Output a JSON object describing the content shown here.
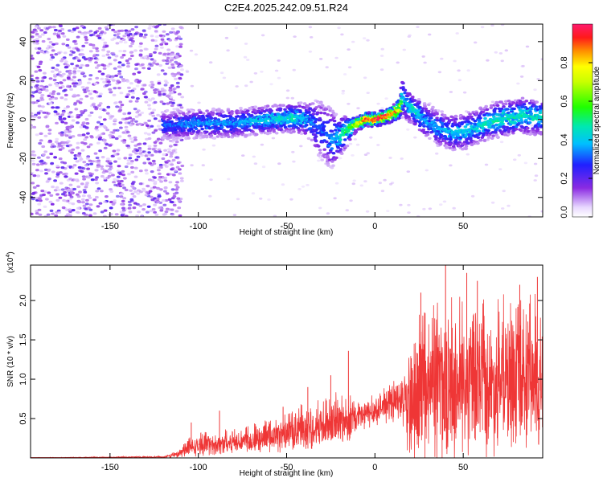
{
  "title": "C2E4.2025.242.09.51.R24",
  "colorbar": {
    "label": "Normalized spectral amplitude",
    "range": [
      0,
      1
    ],
    "ticks": [
      "0.0",
      "0.2",
      "0.4",
      "0.6",
      "0.8"
    ]
  },
  "chart_data": [
    {
      "type": "heatmap",
      "name": "spectrogram",
      "xlabel": "Height of straight line (km)",
      "ylabel": "Frequency (Hz)",
      "xlim": [
        -195,
        95
      ],
      "ylim": [
        -50,
        49
      ],
      "xticks": [
        -150,
        -100,
        -50,
        0,
        50
      ],
      "xtick_labels": [
        "-150",
        "-100",
        "-50",
        "0",
        "50"
      ],
      "yticks": [
        -40,
        -20,
        0,
        20,
        40
      ],
      "ytick_labels": [
        "-40",
        "-20",
        "0",
        "20",
        "40"
      ],
      "noise_region": [
        -195,
        -115
      ],
      "ridge": {
        "x": [
          -118,
          -100,
          -80,
          -60,
          -45,
          -38,
          -32,
          -28,
          -24,
          -20,
          -15,
          -10,
          -5,
          0,
          5,
          10,
          14,
          16,
          18,
          22,
          28,
          35,
          45,
          55,
          65,
          75,
          85,
          95
        ],
        "freq": [
          -3,
          -2,
          -2,
          0,
          1,
          0,
          -4,
          -7,
          -10,
          -9,
          -5,
          -2,
          0,
          0,
          1,
          3,
          5,
          12,
          8,
          5,
          0,
          -4,
          -7,
          -5,
          -1,
          1,
          2,
          1
        ],
        "width": [
          4,
          4,
          4,
          4,
          4,
          5,
          8,
          9,
          8,
          6,
          4,
          2,
          2,
          2,
          2,
          2,
          3,
          6,
          5,
          4,
          5,
          5,
          5,
          5,
          5,
          5,
          5,
          5
        ],
        "amplitude": [
          0.3,
          0.35,
          0.35,
          0.4,
          0.45,
          0.35,
          0.3,
          0.3,
          0.35,
          0.4,
          0.55,
          0.7,
          0.9,
          0.95,
          0.95,
          0.9,
          0.8,
          0.35,
          0.4,
          0.45,
          0.35,
          0.35,
          0.4,
          0.4,
          0.45,
          0.45,
          0.45,
          0.45
        ]
      }
    },
    {
      "type": "line",
      "name": "snr",
      "xlabel": "Height of straight line (km)",
      "ylabel": "SNR (10 * v/v)",
      "exponent_label": "(x10",
      "exponent_power": "4",
      "exponent_close": ")",
      "xlim": [
        -195,
        95
      ],
      "ylim": [
        0,
        2.45
      ],
      "xticks": [
        -150,
        -100,
        -50,
        0,
        50
      ],
      "xtick_labels": [
        "-150",
        "-100",
        "-50",
        "0",
        "50"
      ],
      "yticks": [
        0.5,
        1.0,
        1.5,
        2.0
      ],
      "ytick_labels": [
        "0.5",
        "1.0",
        "1.5",
        "2.0"
      ],
      "color": "#ef3636",
      "envelope": {
        "x": [
          -195,
          -120,
          -112,
          -105,
          -100,
          -90,
          -80,
          -70,
          -60,
          -50,
          -40,
          -30,
          -20,
          -10,
          0,
          10,
          15,
          20,
          25,
          35,
          45,
          55,
          65,
          75,
          85,
          95
        ],
        "base": [
          0.0,
          0.01,
          0.04,
          0.12,
          0.15,
          0.17,
          0.2,
          0.22,
          0.25,
          0.3,
          0.35,
          0.4,
          0.45,
          0.5,
          0.6,
          0.7,
          0.72,
          0.6,
          0.75,
          0.85,
          0.9,
          0.9,
          0.9,
          0.95,
          0.95,
          0.95
        ],
        "spread": [
          0.005,
          0.01,
          0.04,
          0.12,
          0.14,
          0.15,
          0.16,
          0.18,
          0.2,
          0.25,
          0.3,
          0.3,
          0.35,
          0.25,
          0.2,
          0.25,
          0.3,
          0.8,
          0.9,
          1.0,
          1.0,
          1.0,
          0.95,
          0.95,
          0.95,
          0.95
        ]
      },
      "spikes": [
        {
          "x": -104,
          "y": 0.45
        },
        {
          "x": -88,
          "y": 0.6
        },
        {
          "x": -52,
          "y": 0.65
        },
        {
          "x": -38,
          "y": 0.9
        },
        {
          "x": -25,
          "y": 1.05
        },
        {
          "x": -15,
          "y": 1.36
        },
        {
          "x": 26,
          "y": 2.1
        },
        {
          "x": 40,
          "y": 2.5
        },
        {
          "x": 52,
          "y": 2.35
        },
        {
          "x": 58,
          "y": 2.25
        },
        {
          "x": 82,
          "y": 2.2
        },
        {
          "x": 92,
          "y": 2.3
        }
      ]
    }
  ]
}
